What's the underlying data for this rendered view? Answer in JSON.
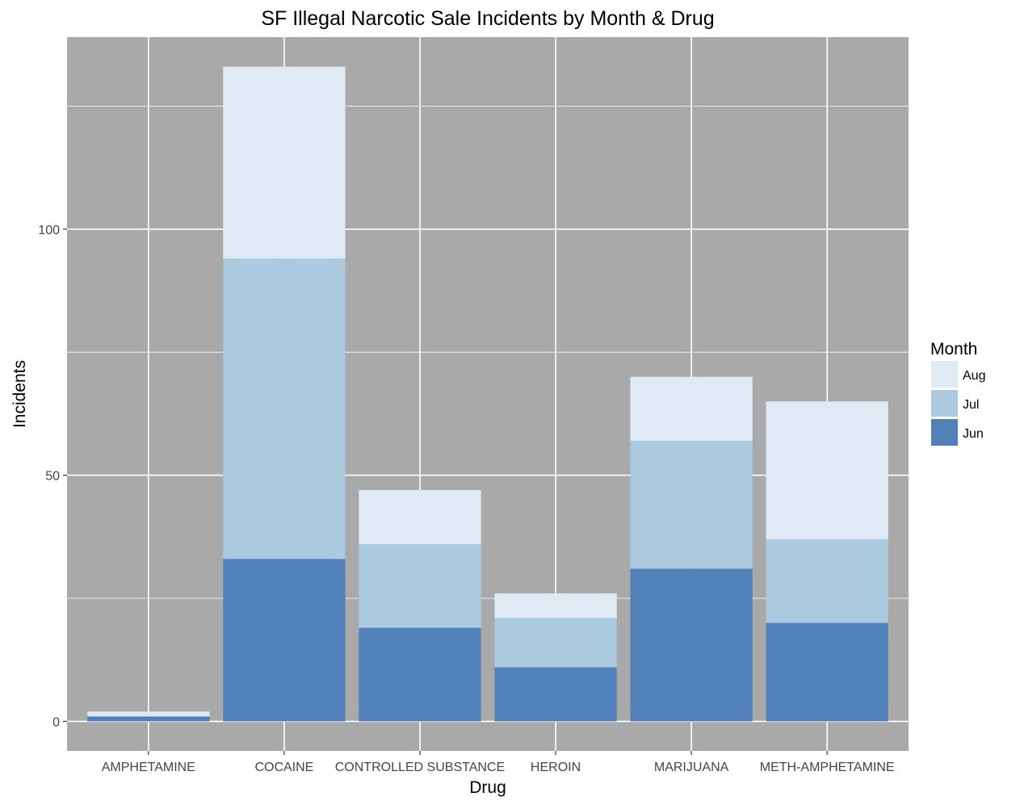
{
  "chart_data": {
    "type": "bar",
    "stacked": true,
    "title": "SF Illegal Narcotic Sale Incidents by Month & Drug",
    "xlabel": "Drug",
    "ylabel": "Incidents",
    "categories": [
      "AMPHETAMINE",
      "COCAINE",
      "CONTROLLED SUBSTANCE",
      "HEROIN",
      "MARIJUANA",
      "METH-AMPHETAMINE"
    ],
    "series": [
      {
        "name": "Jun",
        "color": "#5181b8",
        "values": [
          1,
          33,
          19,
          11,
          31,
          20
        ]
      },
      {
        "name": "Jul",
        "color": "#abc9df",
        "values": [
          0,
          61,
          17,
          10,
          26,
          17
        ]
      },
      {
        "name": "Aug",
        "color": "#dfeaf4",
        "values": [
          1,
          39,
          11,
          5,
          13,
          28
        ]
      }
    ],
    "ylim": [
      -6,
      139
    ],
    "yticks": [
      0,
      50,
      100
    ],
    "grid": true,
    "panel_background": "#a9a9a9",
    "legend": {
      "title": "Month",
      "position": "right",
      "entries": [
        "Aug",
        "Jul",
        "Jun"
      ]
    }
  }
}
